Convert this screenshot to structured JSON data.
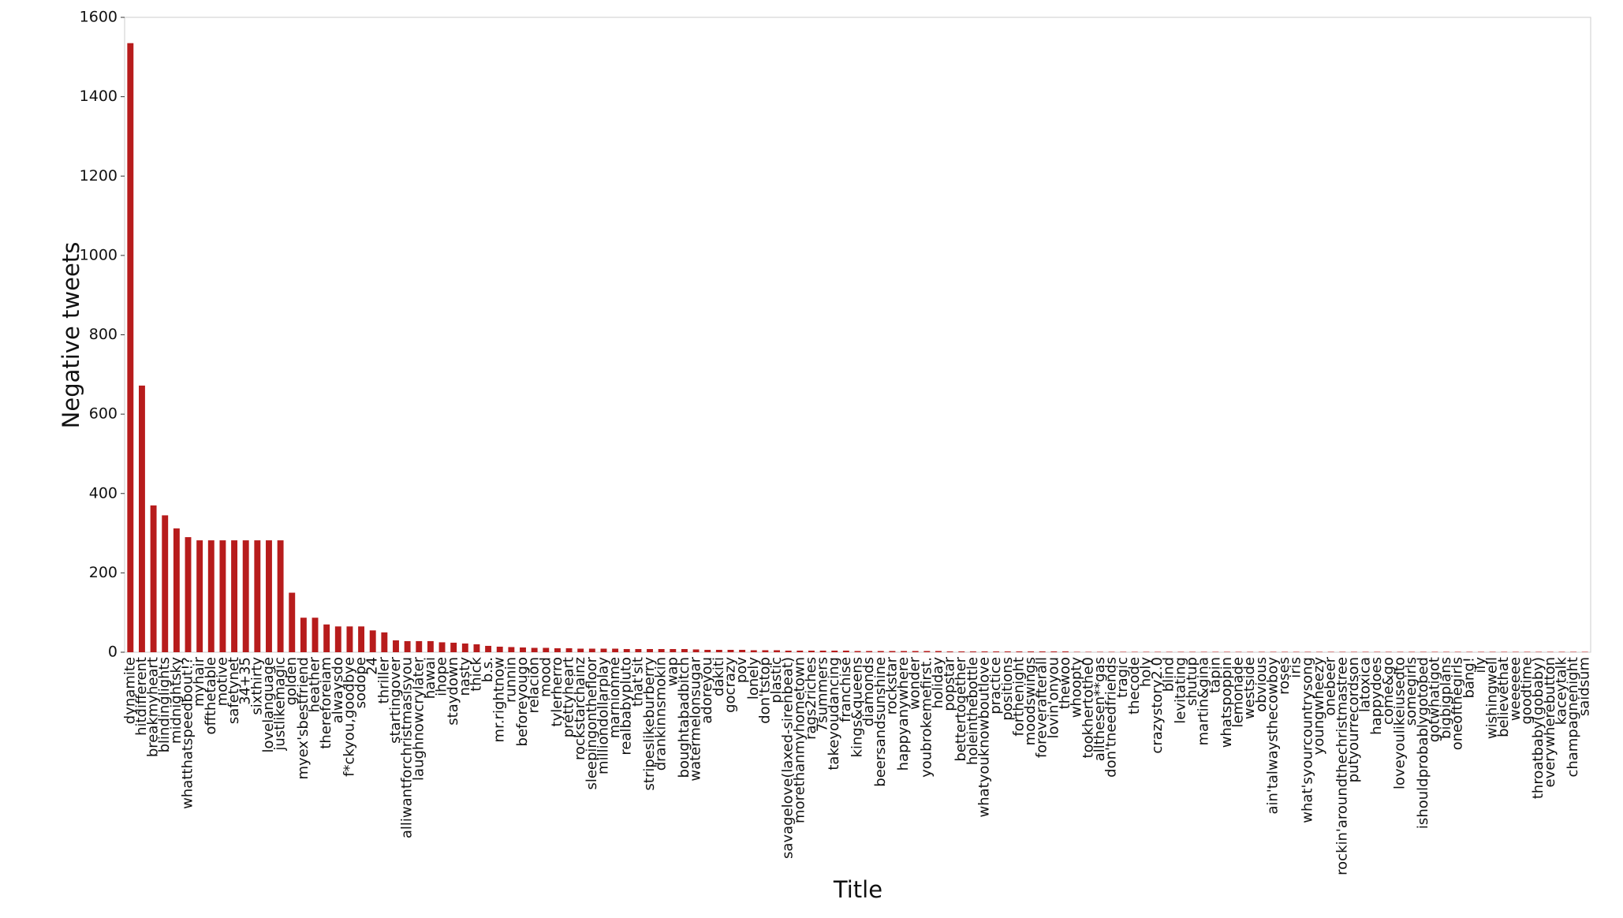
{
  "chart_data": {
    "type": "bar",
    "x_label": "Title",
    "y_label": "Negative tweets",
    "color": "#b71c1c",
    "categories": [
      "dynamite",
      "hitdifferent",
      "breakmyheart",
      "blindinglights",
      "midnightsky",
      "whatthatspeedbout!?",
      "myhair",
      "offthetable",
      "motive",
      "safetynet",
      "34+35",
      "sixthirty",
      "lovelanguage",
      "justlikemagic",
      "golden",
      "myex'sbestfriend",
      "heather",
      "thereforeiam",
      "alwaysdo",
      "f*ckyou,goodbye",
      "sodope",
      "24",
      "thriller",
      "startingover",
      "alliwantforchristmasisyou",
      "laughnowcrylater",
      "hawai",
      "ihope",
      "staydown",
      "nasty",
      "thick",
      "b.s.",
      "mr.rightnow",
      "runnin",
      "beforeyougo",
      "relación",
      "mood",
      "tylerherro",
      "prettyheart",
      "rockstarchainz",
      "sleepingonthefloor",
      "milliondollarplay",
      "marnionme",
      "realbabypluto",
      "that'sit",
      "stripeslikeburberry",
      "drankinnsmokin",
      "wap",
      "boughtabadbitch",
      "watermelonsugar",
      "adoreyou",
      "dakiti",
      "gocrazy",
      "pov",
      "lonely",
      "don'tstop",
      "plastic",
      "savagelove(laxed-sirenbeat)",
      "morethanmyhometown",
      "rags2riches",
      "7summers",
      "takeyoudancing",
      "franchise",
      "kings&queens",
      "diamonds",
      "beersandsunshine",
      "rockstar",
      "happyanywhere",
      "wonder",
      "youbrokemefirst.",
      "holiday",
      "popstar",
      "bettertogether",
      "holeinthebottle",
      "whatyouknowboutlove",
      "practice",
      "positions",
      "forthenight",
      "moodswings",
      "foreverafterall",
      "lovin'onyou",
      "thewoo",
      "whoopty",
      "tookhertothe0",
      "allthesen**gas",
      "don'tneedfriends",
      "tragic",
      "thecode",
      "holy",
      "crazystory2.0",
      "blind",
      "levitating",
      "shutup",
      "martin&gina",
      "tapin",
      "whatspoppin",
      "lemonade",
      "westside",
      "obvious",
      "ain'talwaysthecowboy",
      "roses",
      "iris",
      "what'syourcountrysong",
      "youngwheezy",
      "onebeer",
      "rockin'aroundthechristmastree",
      "putyourrecordson",
      "latoxica",
      "happydoes",
      "come&go",
      "loveyoulikeiusedto",
      "somegirls",
      "ishouldprobablygotobed",
      "gotwhatigot",
      "bigbigplans",
      "oneofthegirls",
      "bang!",
      "ily",
      "wishingwell",
      "believethat",
      "weeeeee",
      "goodtime",
      "throatbaby(gobaby)",
      "everywherebutton",
      "kaceytalk",
      "champagnenight",
      "saidsum"
    ],
    "values": [
      1535,
      672,
      370,
      345,
      312,
      290,
      282,
      282,
      282,
      282,
      282,
      282,
      282,
      282,
      150,
      87,
      87,
      70,
      65,
      65,
      65,
      55,
      50,
      30,
      28,
      28,
      28,
      25,
      24,
      22,
      20,
      16,
      14,
      13,
      12,
      11,
      11,
      10,
      10,
      9,
      9,
      9,
      9,
      8,
      8,
      8,
      8,
      8,
      8,
      7,
      6,
      6,
      6,
      6,
      5,
      5,
      5,
      4,
      4,
      4,
      4,
      4,
      4,
      3,
      3,
      3,
      3,
      3,
      3,
      3,
      3,
      2,
      2,
      2,
      2,
      2,
      2,
      2,
      2,
      2,
      2,
      2,
      1,
      1,
      1,
      1,
      1,
      1,
      1,
      1,
      1,
      1,
      1,
      1,
      1,
      1,
      1,
      1,
      1,
      1,
      1,
      1,
      1,
      1,
      1,
      1,
      1,
      1,
      1,
      1,
      1,
      1,
      1,
      1,
      1,
      1,
      1,
      1,
      1,
      1,
      1,
      1,
      1,
      1,
      1,
      1,
      1
    ],
    "ylim": [
      0,
      1600
    ],
    "yticks": [
      0,
      200,
      400,
      600,
      800,
      1000,
      1200,
      1400,
      1600
    ]
  }
}
